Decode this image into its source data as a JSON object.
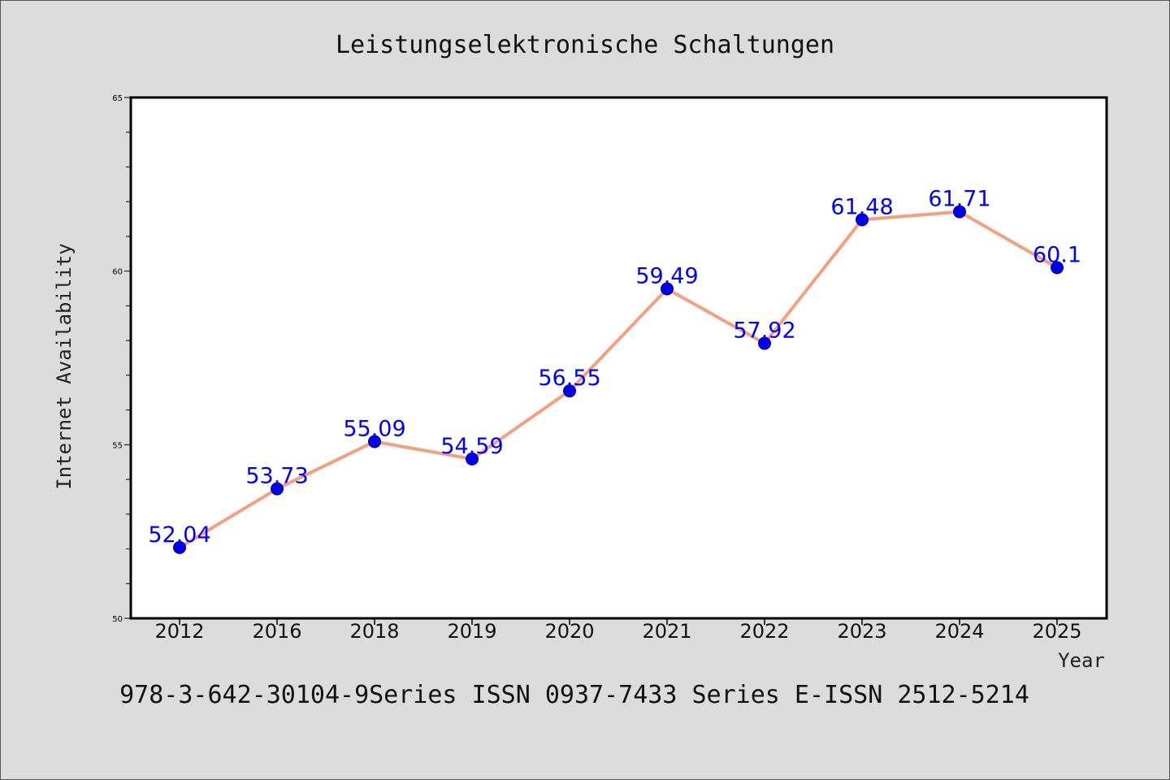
{
  "chart_data": {
    "type": "line",
    "title": "Leistungselektronische Schaltungen",
    "xlabel": "Year",
    "ylabel": "Internet Availability",
    "categories": [
      "2012",
      "2016",
      "2018",
      "2019",
      "2020",
      "2021",
      "2022",
      "2023",
      "2024",
      "2025"
    ],
    "values": [
      52.04,
      53.73,
      55.09,
      54.59,
      56.55,
      59.49,
      57.92,
      61.48,
      61.71,
      60.1
    ],
    "data_labels": [
      "52.04",
      "53.73",
      "55.09",
      "54.59",
      "56.55",
      "59.49",
      "57.92",
      "61.48",
      "61.71",
      "60.1"
    ],
    "ylim": [
      50,
      65
    ],
    "yticks": [
      50,
      55,
      60,
      65
    ],
    "ytick_labels": [
      "50",
      "55",
      "60",
      "65"
    ],
    "grid": false,
    "colors": {
      "line": "#f4a07f",
      "marker": "#0000ee",
      "label": "#0000ff",
      "background": "#dcdcdc",
      "plot_background": "#ffffff"
    },
    "footer": "978-3-642-30104-9Series ISSN 0937-7433 Series E-ISSN 2512-5214"
  }
}
